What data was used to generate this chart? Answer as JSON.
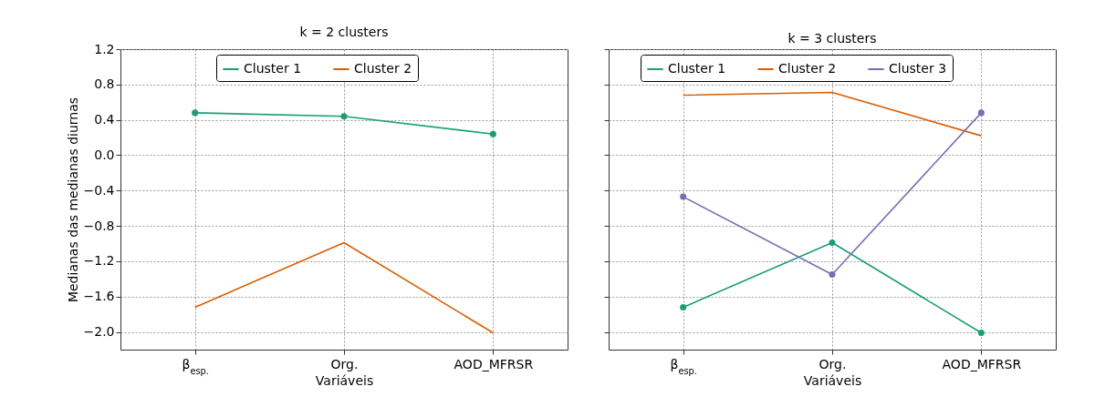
{
  "chart_data": [
    {
      "type": "line",
      "title": "k = 2 clusters",
      "xlabel": "Variáveis",
      "ylabel": "Medianas das medianas diurnas",
      "categories": [
        "β$_{esp.}$",
        "Org.",
        "AOD_MFRSR"
      ],
      "ylim": [
        -2.2,
        1.2
      ],
      "yticks": [
        {
          "value": -2.0,
          "label": "−2.0"
        },
        {
          "value": -1.6,
          "label": "−1.6"
        },
        {
          "value": -1.2,
          "label": "−1.2"
        },
        {
          "value": -0.8,
          "label": "−0.8"
        },
        {
          "value": -0.4,
          "label": "−0.4"
        },
        {
          "value": 0,
          "label": "0.0"
        },
        0.4,
        0.8,
        1.2
      ],
      "grid": true,
      "legend": "top",
      "series": [
        {
          "name": "Cluster 1",
          "color": "#1b9e77",
          "marker": "circle",
          "values": [
            0.48,
            0.44,
            0.24
          ]
        },
        {
          "name": "Cluster 2",
          "color": "#d95f02",
          "marker": "none",
          "values": [
            -1.72,
            -0.99,
            -2.01
          ]
        }
      ]
    },
    {
      "type": "line",
      "title": "k = 3 clusters",
      "xlabel": "Variáveis",
      "categories": [
        "β$_{esp.}$",
        "Org.",
        "AOD_MFRSR"
      ],
      "ylim": [
        -2.2,
        1.2
      ],
      "yticks": [
        -2.0,
        -1.6,
        -1.2,
        -0.8,
        -0.4,
        0,
        0.4,
        0.8,
        1.2
      ],
      "grid": true,
      "legend": "top",
      "tick_labels": "x",
      "series": [
        {
          "name": "Cluster 1",
          "color": "#1b9e77",
          "marker": "circle",
          "values": [
            -1.72,
            -0.99,
            -2.01
          ]
        },
        {
          "name": "Cluster 2",
          "color": "#d95f02",
          "marker": "none",
          "values": [
            0.68,
            0.71,
            0.22
          ]
        },
        {
          "name": "Cluster 3",
          "color": "#7570b3",
          "marker": "circle",
          "values": [
            -0.47,
            -1.35,
            0.48
          ]
        }
      ]
    }
  ]
}
